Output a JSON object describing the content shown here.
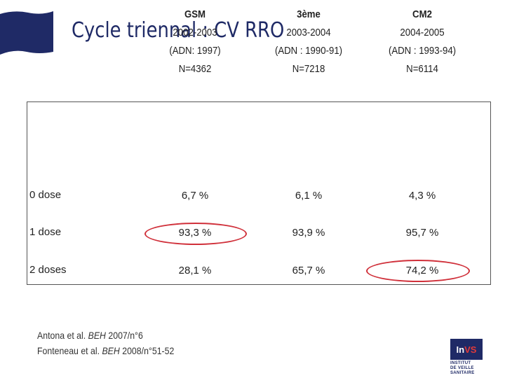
{
  "title": "Cycle triennal : CV RRO",
  "columns": [
    {
      "group": "GSM",
      "years": "2002-2003",
      "adn": "(ADN: 1997)",
      "n": "N=4362"
    },
    {
      "group": "3ème",
      "years": "2003-2004",
      "adn": "(ADN : 1990-91)",
      "n": "N=7218"
    },
    {
      "group": "CM2",
      "years": "2004-2005",
      "adn": "(ADN : 1993-94)",
      "n": "N=6114"
    }
  ],
  "rows": [
    {
      "label": "0 dose",
      "values": [
        "6,7 %",
        "6,1 %",
        "4,3 %"
      ]
    },
    {
      "label": "1 dose",
      "values": [
        "93,3 %",
        "93,9 %",
        "95,7 %"
      ]
    },
    {
      "label": "2 doses",
      "values": [
        "28,1 %",
        "65,7 %",
        "74,2 %"
      ]
    }
  ],
  "references": [
    {
      "authors": "Antona et al. ",
      "journal": "BEH",
      "issue": " 2007/n°6"
    },
    {
      "authors": "Fonteneau et al. ",
      "journal": "BEH",
      "issue": " 2008/n°51-52"
    }
  ],
  "logo": {
    "text_in": "In",
    "text_vs": "VS",
    "subtitle_1": "INSTITUT",
    "subtitle_2": "DE VEILLE SANITAIRE"
  },
  "colors": {
    "accent": "#1f2a66",
    "highlight": "#d0303a"
  }
}
